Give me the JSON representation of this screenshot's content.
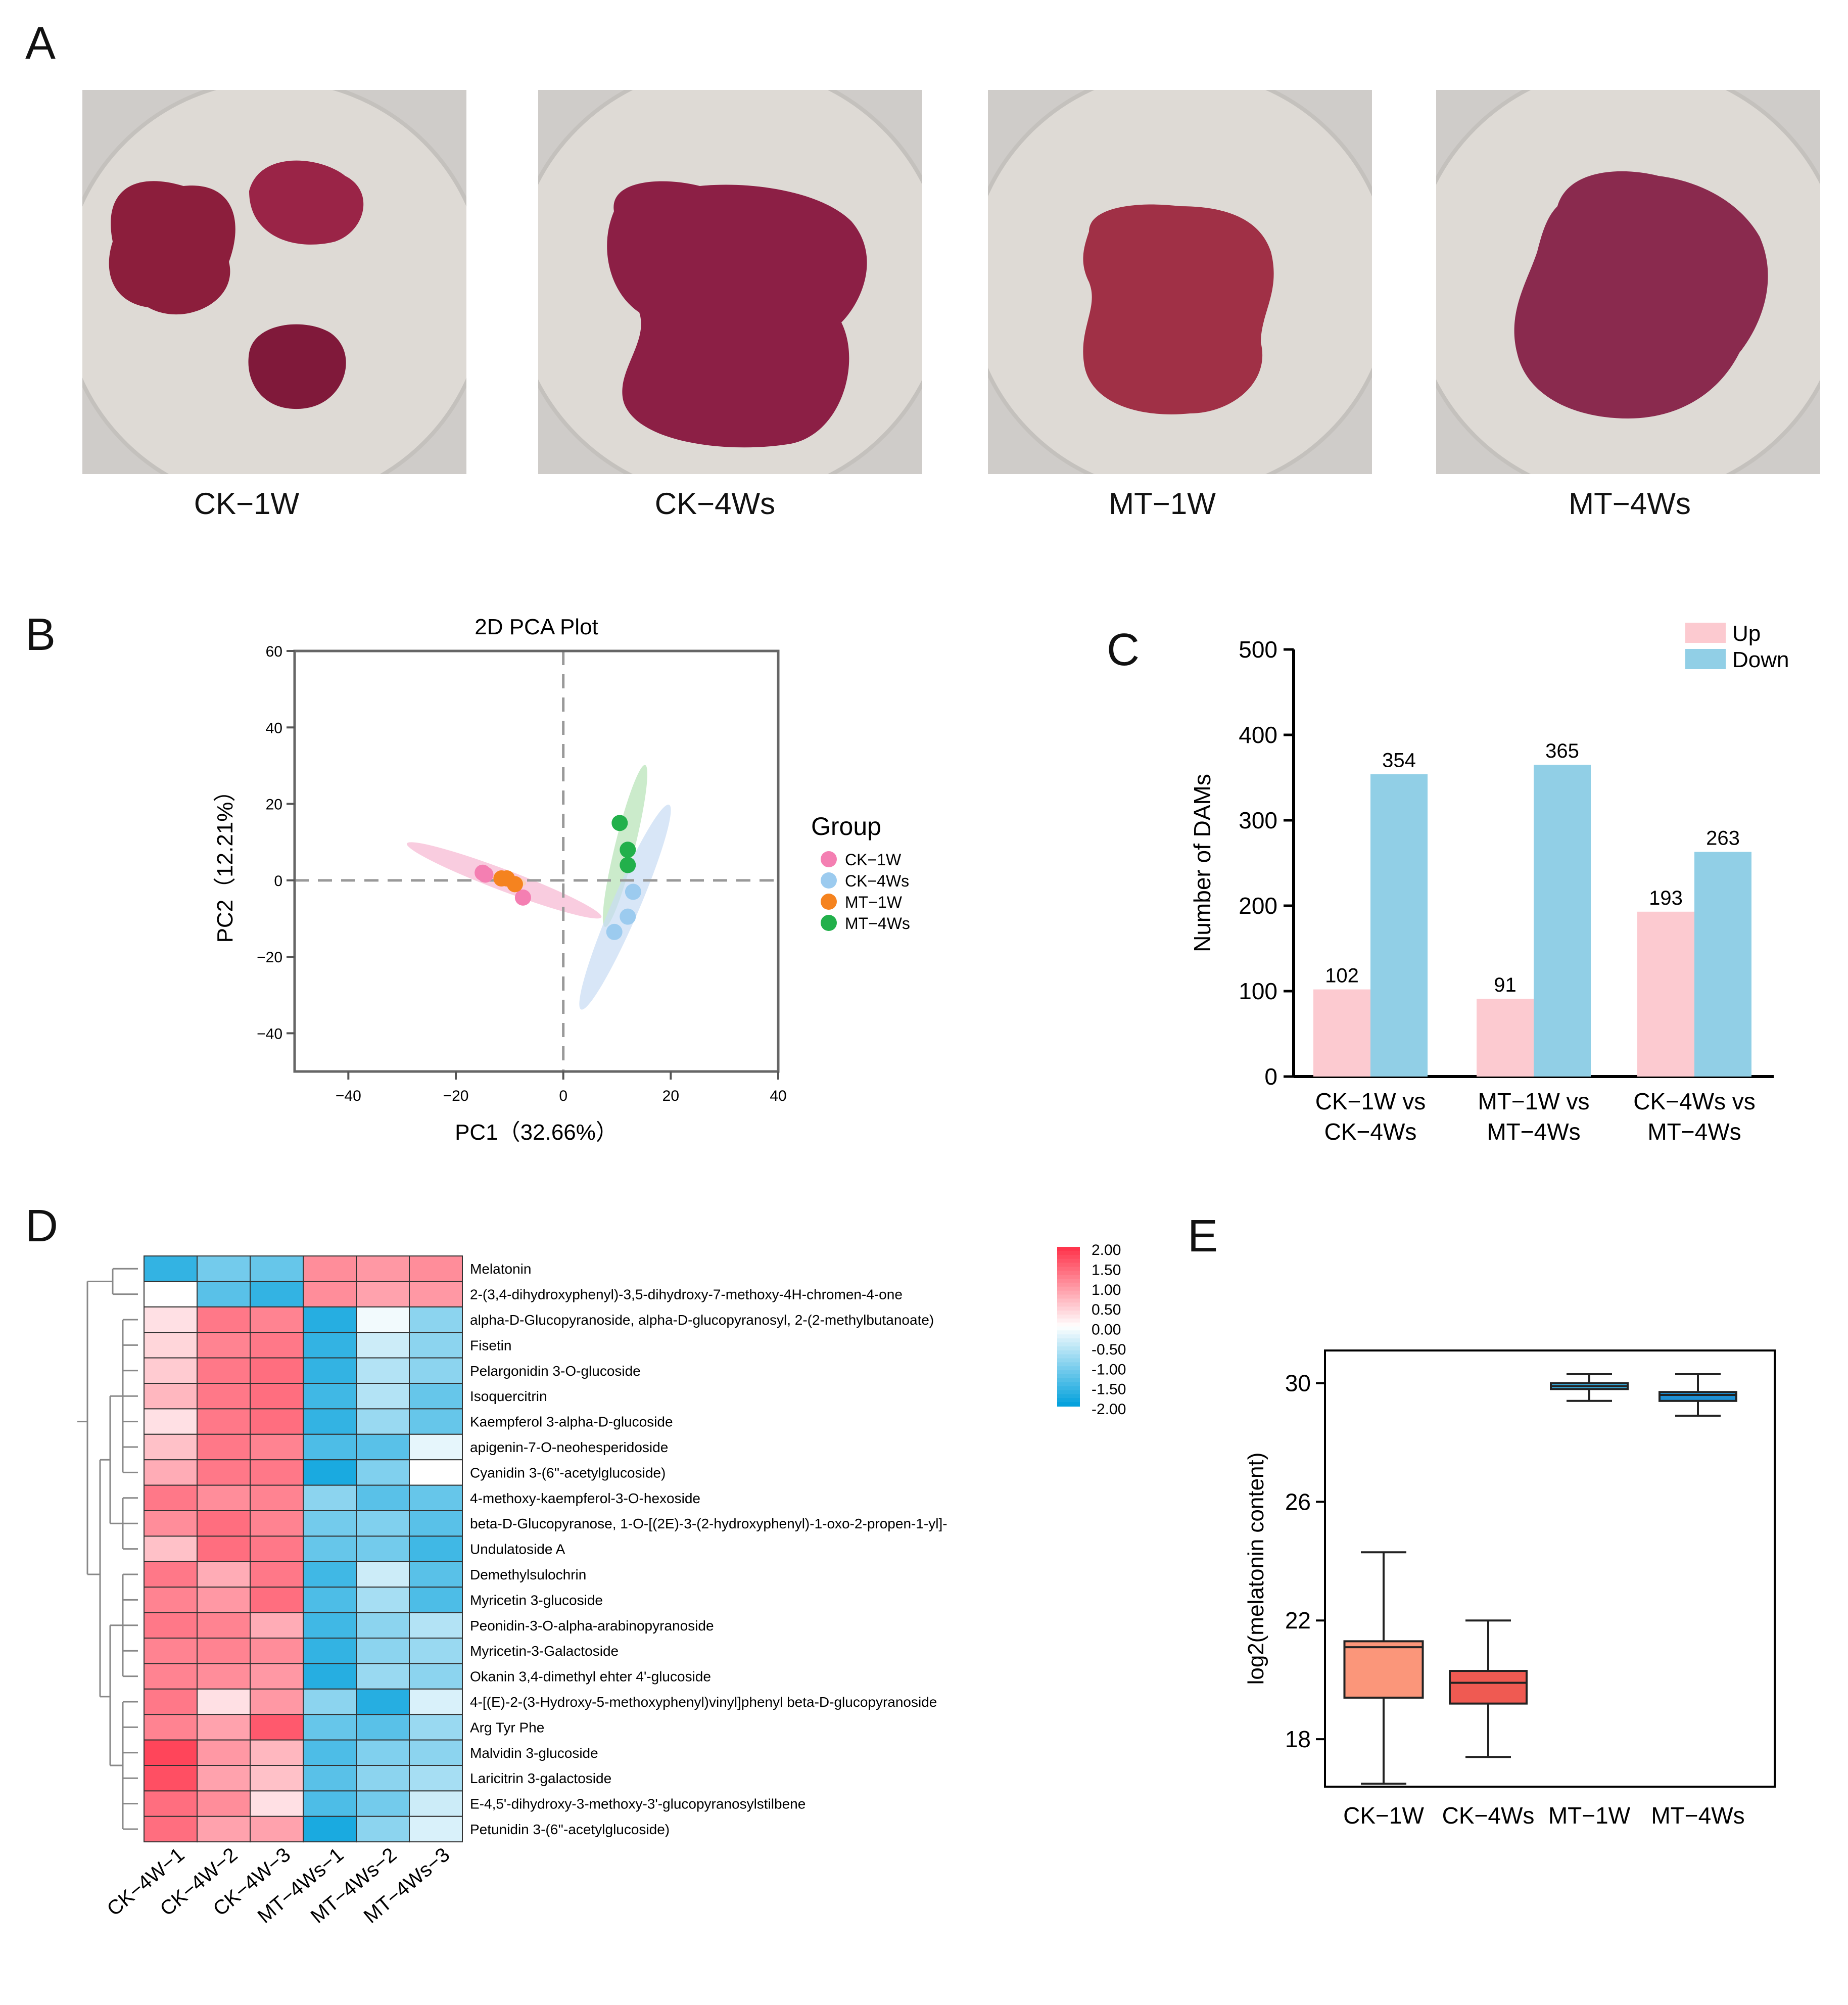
{
  "panels": {
    "A": "A",
    "B": "B",
    "C": "C",
    "D": "D",
    "E": "E"
  },
  "photos": [
    {
      "caption": "CK−1W"
    },
    {
      "caption": "CK−4Ws"
    },
    {
      "caption": "MT−1W"
    },
    {
      "caption": "MT−4Ws"
    }
  ],
  "chart_data": [
    {
      "type": "scatter",
      "title": "2D PCA Plot",
      "xlabel": "PC1（32.66%）",
      "ylabel": "PC2（12.21%）",
      "xlim": [
        -50,
        40
      ],
      "ylim": [
        -50,
        60
      ],
      "xticks": [
        -40,
        -20,
        0,
        20,
        40
      ],
      "yticks": [
        60,
        40,
        20,
        0,
        -20,
        -40
      ],
      "legend_title": "Group",
      "series": [
        {
          "name": "CK−1W",
          "color": "#f47fb2",
          "points": [
            [
              -15,
              2
            ],
            [
              -14.5,
              1.5
            ],
            [
              -7.5,
              -4.5
            ]
          ]
        },
        {
          "name": "CK−4Ws",
          "color": "#9ccbef",
          "points": [
            [
              13,
              -3
            ],
            [
              12,
              -9.5
            ],
            [
              9.5,
              -13.5
            ]
          ]
        },
        {
          "name": "MT−1W",
          "color": "#f5831f",
          "points": [
            [
              -11.5,
              0.5
            ],
            [
              -10.5,
              0.5
            ],
            [
              -9,
              -1
            ]
          ]
        },
        {
          "name": "MT−4Ws",
          "color": "#22b04b",
          "points": [
            [
              10.5,
              15
            ],
            [
              12,
              8
            ],
            [
              12,
              4
            ]
          ]
        }
      ],
      "ellipses": [
        {
          "group": "CK−1W",
          "color": "#f7b6d2",
          "cx": -11,
          "cy": 0,
          "rx": 20.5,
          "ry": 2.8,
          "angle_deg": -28
        },
        {
          "group": "MT−1W",
          "color": "#fbd3a8",
          "cx": -10,
          "cy": 0,
          "rx": 3.2,
          "ry": 1.5,
          "angle_deg": -15
        },
        {
          "group": "MT−4Ws",
          "color": "#b5e3b5",
          "cx": 11.5,
          "cy": 9,
          "rx": 21.5,
          "ry": 2.6,
          "angle_deg": 80
        },
        {
          "group": "CK−4Ws",
          "color": "#c8dcf3",
          "cx": 11.5,
          "cy": -7,
          "rx": 28,
          "ry": 3.6,
          "angle_deg": 73
        }
      ]
    },
    {
      "type": "bar",
      "ylabel": "Number of DAMs",
      "categories": [
        [
          "CK−1W vs",
          "CK−4Ws"
        ],
        [
          "MT−1W vs",
          "MT−4Ws"
        ],
        [
          "CK−4Ws vs",
          "MT−4Ws"
        ]
      ],
      "ylim": [
        0,
        500
      ],
      "yticks": [
        0,
        100,
        200,
        300,
        400,
        500
      ],
      "series": [
        {
          "name": "Up",
          "color": "#fccad0",
          "values": [
            102,
            91,
            193
          ]
        },
        {
          "name": "Down",
          "color": "#91cfe6",
          "values": [
            354,
            365,
            263
          ]
        }
      ],
      "legend": "top-right"
    },
    {
      "type": "heatmap",
      "columns": [
        "CK−4W−1",
        "CK−4W−2",
        "CK−4W−3",
        "MT−4Ws−1",
        "MT−4Ws−2",
        "MT−4Ws−3"
      ],
      "rows": [
        "Melatonin",
        "2-(3,4-dihydroxyphenyl)-3,5-dihydroxy-7-methoxy-4H-chromen-4-one",
        "alpha-D-Glucopyranoside, alpha-D-glucopyranosyl, 2-(2-methylbutanoate)",
        "Fisetin",
        "Pelargonidin 3-O-glucoside",
        "Isoquercitrin",
        "Kaempferol 3-alpha-D-glucoside",
        "apigenin-7-O-neohesperidoside",
        "Cyanidin 3-(6''-acetylglucoside)",
        "4-methoxy-kaempferol-3-O-hexoside",
        "beta-D-Glucopyranose, 1-O-[(2E)-3-(2-hydroxyphenyl)-1-oxo-2-propen-1-yl]-",
        "Undulatoside A",
        "Demethylsulochrin",
        "Myricetin 3-glucoside",
        "Peonidin-3-O-alpha-arabinopyranoside",
        "Myricetin-3-Galactoside",
        "Okanin 3,4-dimethyl ehter 4'-glucoside",
        "4-[(E)-2-(3-Hydroxy-5-methoxyphenyl)vinyl]phenyl beta-D-glucopyranoside",
        "Arg Tyr Phe",
        "Malvidin 3-glucoside",
        "Laricitrin 3-galactoside",
        "E-4,5'-dihydroxy-3-methoxy-3'-glucopyranosylstilbene",
        "Petunidin 3-(6''-acetylglucoside)"
      ],
      "values": [
        [
          -1.6,
          -1.1,
          -1.2,
          1.1,
          1.0,
          1.1
        ],
        [
          0.0,
          -1.3,
          -1.6,
          1.1,
          0.9,
          1.0
        ],
        [
          0.3,
          1.3,
          1.2,
          -1.7,
          -0.1,
          -0.9
        ],
        [
          0.4,
          1.2,
          1.3,
          -1.6,
          -0.4,
          -0.9
        ],
        [
          0.5,
          1.3,
          1.4,
          -1.6,
          -0.6,
          -0.9
        ],
        [
          0.7,
          1.3,
          1.4,
          -1.5,
          -0.6,
          -1.2
        ],
        [
          0.3,
          1.3,
          1.4,
          -1.6,
          -0.8,
          -1.2
        ],
        [
          0.6,
          1.3,
          1.2,
          -1.4,
          -1.3,
          -0.2
        ],
        [
          0.8,
          1.3,
          1.3,
          -1.8,
          -1.0,
          0.0
        ],
        [
          1.3,
          1.1,
          1.2,
          -0.9,
          -1.3,
          -1.2
        ],
        [
          1.1,
          1.4,
          1.2,
          -1.1,
          -1.0,
          -1.3
        ],
        [
          0.6,
          1.4,
          1.3,
          -1.2,
          -1.1,
          -1.5
        ],
        [
          1.3,
          0.8,
          1.3,
          -1.5,
          -0.4,
          -1.3
        ],
        [
          1.2,
          1.0,
          1.4,
          -1.4,
          -0.7,
          -1.4
        ],
        [
          1.3,
          1.2,
          0.8,
          -1.5,
          -0.9,
          -0.6
        ],
        [
          1.2,
          1.2,
          1.1,
          -1.6,
          -0.9,
          -0.8
        ],
        [
          1.2,
          1.1,
          1.0,
          -1.7,
          -0.8,
          -0.9
        ],
        [
          1.3,
          0.3,
          1.0,
          -0.9,
          -1.7,
          -0.3
        ],
        [
          1.2,
          0.9,
          1.6,
          -1.2,
          -1.3,
          -0.8
        ],
        [
          1.8,
          1.0,
          0.7,
          -1.4,
          -1.0,
          -0.9
        ],
        [
          1.7,
          0.9,
          0.6,
          -1.3,
          -0.9,
          -0.7
        ],
        [
          1.4,
          1.1,
          0.3,
          -1.4,
          -1.1,
          -0.4
        ],
        [
          1.4,
          0.9,
          0.9,
          -1.8,
          -0.9,
          -0.3
        ]
      ],
      "colorbar_ticks": [
        "2.00",
        "1.50",
        "1.00",
        "0.50",
        "0.00",
        "-0.50",
        "-1.00",
        "-1.50",
        "-2.00"
      ],
      "vmin": -2,
      "vmax": 2
    },
    {
      "type": "box",
      "ylabel": "log2(melatonin content)",
      "categories": [
        "CK−1W",
        "CK−4Ws",
        "MT−1W",
        "MT−4Ws"
      ],
      "ylim": [
        16.4,
        31.1
      ],
      "yticks": [
        18,
        22,
        26,
        30
      ],
      "boxes": [
        {
          "name": "CK−1W",
          "min": 16.5,
          "q1": 19.4,
          "median": 21.1,
          "q3": 21.3,
          "max": 24.3,
          "color": "#fb967a"
        },
        {
          "name": "CK−4Ws",
          "min": 17.4,
          "q1": 19.2,
          "median": 19.9,
          "q3": 20.3,
          "max": 22.0,
          "color": "#ef5a52"
        },
        {
          "name": "MT−1W",
          "min": 29.4,
          "q1": 29.8,
          "median": 29.9,
          "q3": 30.0,
          "max": 30.3,
          "color": "#39b3e5"
        },
        {
          "name": "MT−4Ws",
          "min": 28.9,
          "q1": 29.4,
          "median": 29.6,
          "q3": 29.7,
          "max": 30.3,
          "color": "#1e90d4"
        }
      ]
    }
  ]
}
